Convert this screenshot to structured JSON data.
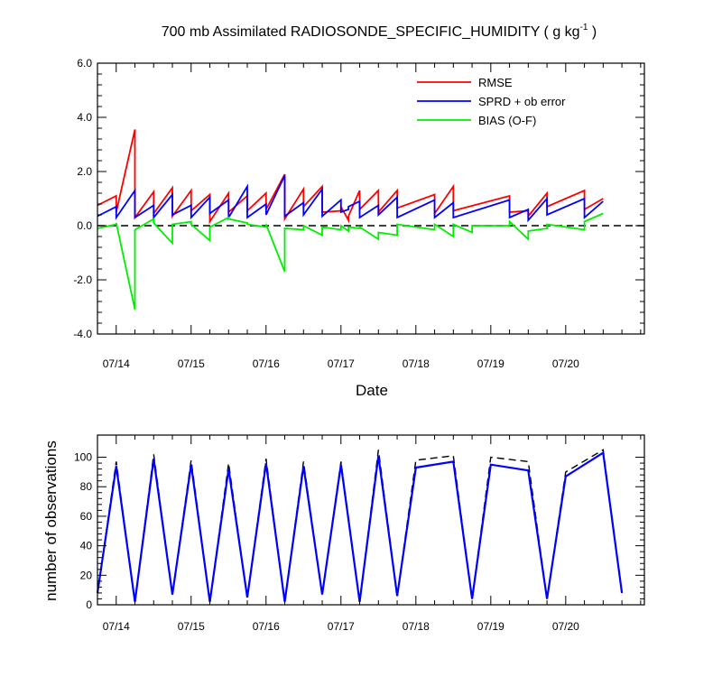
{
  "chart_data": [
    {
      "type": "line",
      "title": "700 mb Assimilated RADIOSONDE_SPECIFIC_HUMIDITY ( g kg",
      "title_sup": "-1",
      "title_end": " )",
      "xlabel": "Date",
      "ylabel": "",
      "ylim": [
        -4.0,
        6.0
      ],
      "xlim": [
        0,
        7.3
      ],
      "y_ticks": [
        -4.0,
        -2.0,
        0.0,
        2.0,
        4.0,
        6.0
      ],
      "y_tick_labels": [
        "-4.0",
        "-2.0",
        "0.0",
        "2.0",
        "4.0",
        "6.0"
      ],
      "x_ticks": [
        0.25,
        1.25,
        2.25,
        3.25,
        4.25,
        5.25,
        6.25
      ],
      "x_tick_labels": [
        "07/14",
        "07/15",
        "07/16",
        "07/17",
        "07/18",
        "07/19",
        "07/20"
      ],
      "zero_line": "dashed",
      "legend": [
        "RMSE",
        "SPRD + ob error",
        "BIAS (O-F)"
      ],
      "legend_position": "top-right",
      "colors": {
        "RMSE": "#ff0000",
        "SPRD": "#0000ff",
        "BIAS": "#00ee00",
        "zero": "#000000"
      },
      "series": [
        {
          "name": "RMSE",
          "points": [
            [
              0,
              0.75
            ],
            [
              0.25,
              1.1
            ],
            [
              0.25,
              0.5
            ],
            [
              0.5,
              3.55
            ],
            [
              0.5,
              0.3
            ],
            [
              0.75,
              1.25
            ],
            [
              0.75,
              0.45
            ],
            [
              1.0,
              1.4
            ],
            [
              1.0,
              0.35
            ],
            [
              1.25,
              1.3
            ],
            [
              1.25,
              0.55
            ],
            [
              1.5,
              1.15
            ],
            [
              1.5,
              0.15
            ],
            [
              1.75,
              1.2
            ],
            [
              1.75,
              0.5
            ],
            [
              2.0,
              1.1
            ],
            [
              2.0,
              0.55
            ],
            [
              2.25,
              1.2
            ],
            [
              2.25,
              0.6
            ],
            [
              2.5,
              1.9
            ],
            [
              2.5,
              0.25
            ],
            [
              2.75,
              1.35
            ],
            [
              2.75,
              0.7
            ],
            [
              3.0,
              1.45
            ],
            [
              3.0,
              0.5
            ],
            [
              3.25,
              0.55
            ],
            [
              3.25,
              0.7
            ],
            [
              3.35,
              0.2
            ],
            [
              3.35,
              0.35
            ],
            [
              3.5,
              1.3
            ],
            [
              3.5,
              0.6
            ],
            [
              3.75,
              1.3
            ],
            [
              3.75,
              0.5
            ],
            [
              4.0,
              1.3
            ],
            [
              4.0,
              0.65
            ],
            [
              4.5,
              1.15
            ],
            [
              4.5,
              0.45
            ],
            [
              4.75,
              1.45
            ],
            [
              4.75,
              0.55
            ],
            [
              5.5,
              1.1
            ],
            [
              5.5,
              0.5
            ],
            [
              5.75,
              0.55
            ],
            [
              5.75,
              0.35
            ],
            [
              6.0,
              1.2
            ],
            [
              6.0,
              0.7
            ],
            [
              6.5,
              1.3
            ],
            [
              6.5,
              0.6
            ],
            [
              6.75,
              1.0
            ]
          ]
        },
        {
          "name": "SPRD + ob error",
          "points": [
            [
              0,
              0.35
            ],
            [
              0.25,
              0.7
            ],
            [
              0.25,
              0.3
            ],
            [
              0.5,
              1.3
            ],
            [
              0.5,
              0.3
            ],
            [
              0.75,
              0.75
            ],
            [
              0.75,
              0.3
            ],
            [
              1.0,
              1.15
            ],
            [
              1.0,
              0.4
            ],
            [
              1.25,
              0.75
            ],
            [
              1.25,
              0.3
            ],
            [
              1.5,
              1.05
            ],
            [
              1.5,
              0.45
            ],
            [
              1.75,
              0.95
            ],
            [
              1.75,
              0.3
            ],
            [
              2.0,
              1.45
            ],
            [
              2.0,
              0.3
            ],
            [
              2.25,
              0.8
            ],
            [
              2.25,
              0.4
            ],
            [
              2.5,
              1.85
            ],
            [
              2.5,
              0.35
            ],
            [
              2.75,
              0.85
            ],
            [
              2.75,
              0.4
            ],
            [
              3.0,
              1.35
            ],
            [
              3.0,
              0.35
            ],
            [
              3.25,
              0.95
            ],
            [
              3.25,
              0.5
            ],
            [
              3.35,
              0.6
            ],
            [
              3.35,
              0.7
            ],
            [
              3.5,
              0.9
            ],
            [
              3.5,
              0.3
            ],
            [
              3.75,
              0.75
            ],
            [
              3.75,
              0.4
            ],
            [
              4.0,
              1.05
            ],
            [
              4.0,
              0.3
            ],
            [
              4.5,
              0.95
            ],
            [
              4.5,
              0.3
            ],
            [
              4.75,
              0.85
            ],
            [
              4.75,
              0.3
            ],
            [
              5.5,
              0.95
            ],
            [
              5.5,
              0.3
            ],
            [
              5.75,
              0.6
            ],
            [
              5.75,
              0.2
            ],
            [
              6.0,
              1.0
            ],
            [
              6.0,
              0.4
            ],
            [
              6.5,
              1.0
            ],
            [
              6.5,
              0.3
            ],
            [
              6.75,
              0.9
            ]
          ]
        },
        {
          "name": "BIAS (O-F)",
          "points": [
            [
              0,
              -0.1
            ],
            [
              0.25,
              0.05
            ],
            [
              0.25,
              0.1
            ],
            [
              0.5,
              -3.1
            ],
            [
              0.5,
              -0.15
            ],
            [
              0.75,
              0.25
            ],
            [
              0.75,
              0.1
            ],
            [
              1.0,
              -0.65
            ],
            [
              1.0,
              0.05
            ],
            [
              1.25,
              0.15
            ],
            [
              1.25,
              0.05
            ],
            [
              1.5,
              -0.55
            ],
            [
              1.5,
              -0.05
            ],
            [
              1.75,
              0.3
            ],
            [
              1.75,
              0.25
            ],
            [
              2.0,
              0.1
            ],
            [
              2.0,
              0.05
            ],
            [
              2.25,
              -0.05
            ],
            [
              2.25,
              0.05
            ],
            [
              2.5,
              -1.7
            ],
            [
              2.5,
              -0.1
            ],
            [
              2.75,
              -0.15
            ],
            [
              2.75,
              0.0
            ],
            [
              3.0,
              -0.35
            ],
            [
              3.0,
              -0.05
            ],
            [
              3.25,
              -0.15
            ],
            [
              3.25,
              0.0
            ],
            [
              3.35,
              -0.2
            ],
            [
              3.35,
              -0.05
            ],
            [
              3.5,
              -0.1
            ],
            [
              3.5,
              -0.05
            ],
            [
              3.75,
              -0.5
            ],
            [
              3.75,
              -0.25
            ],
            [
              4.0,
              -0.35
            ],
            [
              4.0,
              0.05
            ],
            [
              4.5,
              -0.15
            ],
            [
              4.5,
              0.05
            ],
            [
              4.75,
              -0.4
            ],
            [
              4.75,
              0.05
            ],
            [
              5.0,
              -0.25
            ],
            [
              5.0,
              0.0
            ],
            [
              5.5,
              0.0
            ],
            [
              5.5,
              0.15
            ],
            [
              5.75,
              -0.5
            ],
            [
              5.75,
              -0.2
            ],
            [
              6.0,
              -0.1
            ],
            [
              6.0,
              0.05
            ],
            [
              6.5,
              -0.15
            ],
            [
              6.5,
              0.15
            ],
            [
              6.75,
              0.45
            ]
          ]
        }
      ]
    },
    {
      "type": "line",
      "title": "",
      "xlabel": "",
      "ylabel": "number of observations",
      "ylim": [
        0,
        115
      ],
      "xlim": [
        0,
        7.3
      ],
      "y_ticks": [
        0,
        20,
        40,
        60,
        80,
        100
      ],
      "y_tick_labels": [
        "0",
        "20",
        "40",
        "60",
        "80",
        "100"
      ],
      "x_ticks": [
        0.25,
        1.25,
        2.25,
        3.25,
        4.25,
        5.25,
        6.25
      ],
      "x_tick_labels": [
        "07/14",
        "07/15",
        "07/16",
        "07/17",
        "07/18",
        "07/19",
        "07/20"
      ],
      "colors": {
        "used": "#0000ff",
        "possible": "#000000"
      },
      "series": [
        {
          "name": "possible",
          "style": "dashed",
          "points": [
            [
              0,
              8
            ],
            [
              0.25,
              97
            ],
            [
              0.5,
              2
            ],
            [
              0.75,
              102
            ],
            [
              1.0,
              7
            ],
            [
              1.25,
              98
            ],
            [
              1.5,
              2
            ],
            [
              1.75,
              96
            ],
            [
              2.0,
              5
            ],
            [
              2.25,
              99
            ],
            [
              2.5,
              2
            ],
            [
              2.75,
              97
            ],
            [
              3.0,
              7
            ],
            [
              3.25,
              97
            ],
            [
              3.5,
              2
            ],
            [
              3.75,
              105
            ],
            [
              4.0,
              6
            ],
            [
              4.25,
              98
            ],
            [
              4.75,
              101
            ],
            [
              5.0,
              4
            ],
            [
              5.25,
              100
            ],
            [
              5.75,
              97
            ],
            [
              6.0,
              4
            ],
            [
              6.25,
              90
            ],
            [
              6.75,
              105
            ],
            [
              7.0,
              8
            ]
          ]
        },
        {
          "name": "used",
          "style": "solid",
          "points": [
            [
              0,
              8
            ],
            [
              0.25,
              94
            ],
            [
              0.5,
              2
            ],
            [
              0.75,
              99
            ],
            [
              1.0,
              7
            ],
            [
              1.25,
              95
            ],
            [
              1.5,
              2
            ],
            [
              1.75,
              92
            ],
            [
              2.0,
              5
            ],
            [
              2.25,
              96
            ],
            [
              2.5,
              2
            ],
            [
              2.75,
              94
            ],
            [
              3.0,
              7
            ],
            [
              3.25,
              95
            ],
            [
              3.5,
              2
            ],
            [
              3.75,
              101
            ],
            [
              4.0,
              6
            ],
            [
              4.25,
              93
            ],
            [
              4.75,
              97
            ],
            [
              5.0,
              4
            ],
            [
              5.25,
              95
            ],
            [
              5.75,
              91
            ],
            [
              6.0,
              4
            ],
            [
              6.25,
              87
            ],
            [
              6.75,
              103
            ],
            [
              7.0,
              8
            ]
          ]
        }
      ]
    }
  ]
}
